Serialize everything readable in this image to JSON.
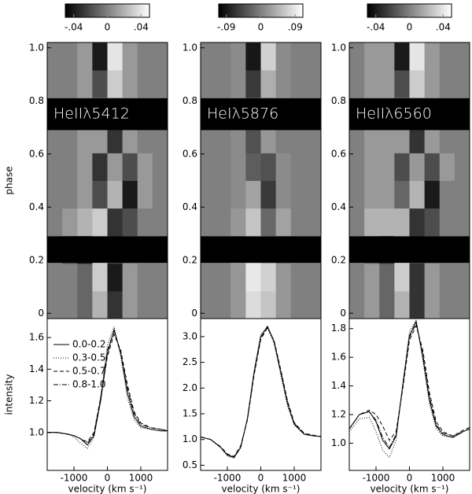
{
  "chart_data": [
    {
      "type": "heatmap",
      "label": "HeIIλ5412",
      "ylabel": "phase",
      "xlim": [
        -1800,
        1800
      ],
      "ylim": [
        -0.02,
        1.02
      ],
      "yticks": [
        0,
        0.2,
        0.4,
        0.6,
        0.8,
        {
          "value": 1,
          "label": "1.0"
        }
      ],
      "zlim": [
        -0.05,
        0.05
      ],
      "zticks": [
        {
          "value": -0.04,
          "label": "-.04"
        },
        0,
        {
          "value": 0.04,
          "label": ".04"
        }
      ],
      "masked": [
        [
          0.19,
          0.29
        ],
        [
          0.69,
          0.81
        ]
      ],
      "z": [
        [
          0,
          0,
          -0.01,
          0.02,
          -0.03,
          0.01,
          0,
          0
        ],
        [
          0,
          0,
          -0.01,
          0.03,
          -0.04,
          0.01,
          0,
          0
        ],
        [
          0,
          -0.02,
          -0.04,
          0.03,
          -0.02,
          0,
          0,
          0
        ],
        [
          0,
          0.01,
          0.02,
          0.03,
          -0.03,
          -0.02,
          0,
          0
        ],
        [
          0,
          0,
          0.01,
          -0.02,
          0.02,
          -0.04,
          0.01,
          0
        ],
        [
          0,
          0,
          0.01,
          -0.03,
          0.01,
          -0.02,
          0.01,
          0
        ],
        [
          0,
          0,
          0.01,
          0.01,
          -0.03,
          0.01,
          0,
          0
        ],
        [
          0,
          0,
          0.01,
          0.03,
          -0.02,
          0.01,
          0,
          0
        ],
        [
          0,
          0,
          0.01,
          -0.02,
          0.03,
          0.01,
          0,
          0
        ],
        [
          0,
          0,
          0.01,
          -0.04,
          0.04,
          0.01,
          0,
          0
        ]
      ]
    },
    {
      "type": "line",
      "ylabel": "intensity",
      "xlabel": "velocity (km s⁻¹)",
      "legend": "upper left",
      "xlim": [
        -1800,
        1800
      ],
      "ylim": [
        0.76,
        1.72
      ],
      "xticks": [
        -1000,
        0,
        1000
      ],
      "yticks": [
        {
          "value": 1,
          "label": "1.0"
        },
        1.2,
        1.4,
        1.6
      ],
      "x": [
        -1800,
        -1500,
        -1200,
        -1000,
        -800,
        -600,
        -400,
        -200,
        0,
        200,
        400,
        600,
        800,
        1000,
        1300,
        1600,
        1800
      ],
      "series": [
        {
          "name": "0.0-0.2",
          "color": "#000",
          "style": "solid",
          "values": [
            1.0,
            1.0,
            0.99,
            0.98,
            0.96,
            0.92,
            0.98,
            1.2,
            1.5,
            1.65,
            1.5,
            1.25,
            1.1,
            1.04,
            1.02,
            1.01,
            1.01
          ]
        },
        {
          "name": "0.3-0.5",
          "color": "#000",
          "style": "dotted",
          "values": [
            1.0,
            1.0,
            0.99,
            0.97,
            0.93,
            0.9,
            0.97,
            1.22,
            1.55,
            1.67,
            1.48,
            1.22,
            1.08,
            1.03,
            1.02,
            1.01,
            1.01
          ]
        },
        {
          "name": "0.5-0.7",
          "color": "#000",
          "style": "dashed",
          "values": [
            1.0,
            1.0,
            0.99,
            0.98,
            0.96,
            0.94,
            1.0,
            1.22,
            1.48,
            1.62,
            1.52,
            1.3,
            1.13,
            1.06,
            1.03,
            1.02,
            1.01
          ]
        },
        {
          "name": "0.8-1.0",
          "color": "#000",
          "style": "dashdot",
          "values": [
            1.0,
            1.0,
            0.99,
            0.98,
            0.96,
            0.93,
            0.99,
            1.22,
            1.52,
            1.64,
            1.5,
            1.28,
            1.12,
            1.05,
            1.03,
            1.02,
            1.01
          ]
        }
      ]
    },
    {
      "type": "heatmap",
      "label": "HeIλ5876",
      "xlim": [
        -1800,
        1800
      ],
      "ylim": [
        -0.02,
        1.02
      ],
      "yticks": [
        0,
        0.2,
        0.4,
        0.6,
        0.8,
        {
          "value": 1,
          "label": "1.0"
        }
      ],
      "zlim": [
        -0.11,
        0.11
      ],
      "zticks": [
        {
          "value": -0.09,
          "label": "-.09"
        },
        0,
        {
          "value": 0.09,
          "label": ".09"
        }
      ],
      "masked": [
        [
          0.19,
          0.29
        ],
        [
          0.69,
          0.81
        ]
      ],
      "z": [
        [
          0,
          0,
          0.02,
          0.08,
          0.06,
          0.02,
          0,
          0
        ],
        [
          0,
          0,
          0.02,
          0.09,
          0.07,
          0.02,
          0,
          0
        ],
        [
          0,
          0,
          0.03,
          0.08,
          0.05,
          0,
          0,
          0
        ],
        [
          0,
          0,
          0.02,
          0.06,
          -0.02,
          0.03,
          0,
          0
        ],
        [
          0,
          0,
          0.01,
          0.03,
          -0.06,
          0.01,
          0,
          0
        ],
        [
          0,
          0,
          0.01,
          -0.03,
          -0.04,
          0.01,
          0,
          0
        ],
        [
          0,
          0,
          0.01,
          -0.04,
          0.02,
          0,
          0,
          0
        ],
        [
          0,
          0,
          0.02,
          0.06,
          -0.03,
          0.02,
          0,
          0
        ],
        [
          0,
          0,
          0.01,
          -0.06,
          0.04,
          0.01,
          0,
          0
        ],
        [
          0,
          0,
          0.01,
          -0.09,
          0.07,
          0.01,
          0,
          0
        ]
      ]
    },
    {
      "type": "line",
      "xlabel": "velocity (km s⁻¹)",
      "xlim": [
        -1800,
        1800
      ],
      "ylim": [
        0.4,
        3.35
      ],
      "xticks": [
        -1000,
        0,
        1000
      ],
      "yticks": [
        0.5,
        {
          "value": 1,
          "label": "1.0"
        },
        1.5,
        {
          "value": 2,
          "label": "2.0"
        },
        2.5,
        {
          "value": 3,
          "label": "3.0"
        }
      ],
      "x": [
        -1800,
        -1500,
        -1200,
        -1000,
        -800,
        -600,
        -400,
        -200,
        0,
        200,
        400,
        600,
        800,
        1000,
        1300,
        1600,
        1800
      ],
      "series": [
        {
          "color": "#000",
          "style": "solid",
          "values": [
            1.05,
            1.0,
            0.85,
            0.7,
            0.65,
            0.85,
            1.4,
            2.3,
            3.0,
            3.2,
            2.9,
            2.3,
            1.7,
            1.3,
            1.1,
            1.07,
            1.06
          ]
        },
        {
          "color": "#000",
          "style": "dotted",
          "values": [
            1.05,
            1.0,
            0.84,
            0.68,
            0.64,
            0.84,
            1.42,
            2.35,
            3.05,
            3.18,
            2.85,
            2.25,
            1.65,
            1.28,
            1.1,
            1.07,
            1.06
          ]
        },
        {
          "color": "#000",
          "style": "dashed",
          "values": [
            1.05,
            1.0,
            0.86,
            0.72,
            0.67,
            0.88,
            1.38,
            2.25,
            2.95,
            3.17,
            2.92,
            2.35,
            1.75,
            1.33,
            1.12,
            1.08,
            1.06
          ]
        },
        {
          "color": "#000",
          "style": "dashdot",
          "values": [
            1.05,
            1.0,
            0.85,
            0.7,
            0.66,
            0.86,
            1.4,
            2.28,
            2.98,
            3.19,
            2.9,
            2.32,
            1.72,
            1.31,
            1.11,
            1.07,
            1.06
          ]
        }
      ]
    },
    {
      "type": "heatmap",
      "label": "HeIIλ6560",
      "xlim": [
        -1800,
        1800
      ],
      "ylim": [
        -0.02,
        1.02
      ],
      "yticks": [
        0,
        0.2,
        0.4,
        0.6,
        0.8,
        {
          "value": 1,
          "label": "1.0"
        }
      ],
      "zlim": [
        -0.05,
        0.05
      ],
      "zticks": [
        {
          "value": -0.04,
          "label": "-.04"
        },
        0,
        {
          "value": 0.04,
          "label": ".04"
        }
      ],
      "masked": [
        [
          0.19,
          0.29
        ],
        [
          0.69,
          0.81
        ]
      ],
      "z": [
        [
          0,
          0.01,
          -0.01,
          0.02,
          -0.03,
          0.01,
          0,
          0
        ],
        [
          0,
          0.01,
          -0.01,
          0.03,
          -0.03,
          0.01,
          0,
          0
        ],
        [
          0,
          -0.01,
          -0.03,
          0.03,
          -0.02,
          0,
          0,
          0
        ],
        [
          0,
          0.02,
          0.02,
          0.02,
          -0.03,
          -0.02,
          0,
          0
        ],
        [
          0,
          0.01,
          0.01,
          -0.01,
          0.02,
          -0.04,
          0,
          0
        ],
        [
          0,
          0.01,
          0.01,
          -0.02,
          0.01,
          -0.02,
          0.01,
          0
        ],
        [
          0,
          0.01,
          0.01,
          0.01,
          -0.03,
          0.01,
          0,
          0
        ],
        [
          0,
          0.01,
          0.01,
          0.03,
          -0.02,
          0.01,
          0,
          0
        ],
        [
          0,
          0.01,
          0.01,
          -0.02,
          0.03,
          0.01,
          0,
          0
        ],
        [
          0,
          0.01,
          0.01,
          -0.04,
          0.04,
          0.01,
          0,
          0
        ]
      ]
    },
    {
      "type": "line",
      "xlabel": "velocity (km s⁻¹)",
      "xlim": [
        -1800,
        1800
      ],
      "ylim": [
        0.81,
        1.87
      ],
      "xticks": [
        -1000,
        0,
        1000
      ],
      "yticks": [
        {
          "value": 1,
          "label": "1.0"
        },
        1.2,
        1.4,
        1.6,
        1.8
      ],
      "x": [
        -1800,
        -1500,
        -1200,
        -1000,
        -800,
        -600,
        -400,
        -200,
        0,
        200,
        400,
        600,
        800,
        1000,
        1300,
        1600,
        1800
      ],
      "series": [
        {
          "color": "#000",
          "style": "solid",
          "values": [
            1.1,
            1.2,
            1.22,
            1.15,
            1.02,
            0.96,
            1.05,
            1.4,
            1.75,
            1.85,
            1.6,
            1.3,
            1.12,
            1.06,
            1.04,
            1.08,
            1.1
          ]
        },
        {
          "color": "#000",
          "style": "dotted",
          "values": [
            1.08,
            1.17,
            1.18,
            1.08,
            0.95,
            0.9,
            1.02,
            1.42,
            1.78,
            1.86,
            1.58,
            1.27,
            1.1,
            1.05,
            1.04,
            1.08,
            1.1
          ]
        },
        {
          "color": "#000",
          "style": "dashed",
          "values": [
            1.1,
            1.2,
            1.23,
            1.2,
            1.12,
            1.02,
            1.08,
            1.38,
            1.72,
            1.82,
            1.65,
            1.35,
            1.15,
            1.08,
            1.05,
            1.09,
            1.11
          ]
        },
        {
          "color": "#000",
          "style": "dashdot",
          "values": [
            1.1,
            1.2,
            1.22,
            1.16,
            1.04,
            0.97,
            1.06,
            1.4,
            1.74,
            1.84,
            1.62,
            1.32,
            1.13,
            1.07,
            1.05,
            1.08,
            1.1
          ]
        }
      ]
    }
  ]
}
